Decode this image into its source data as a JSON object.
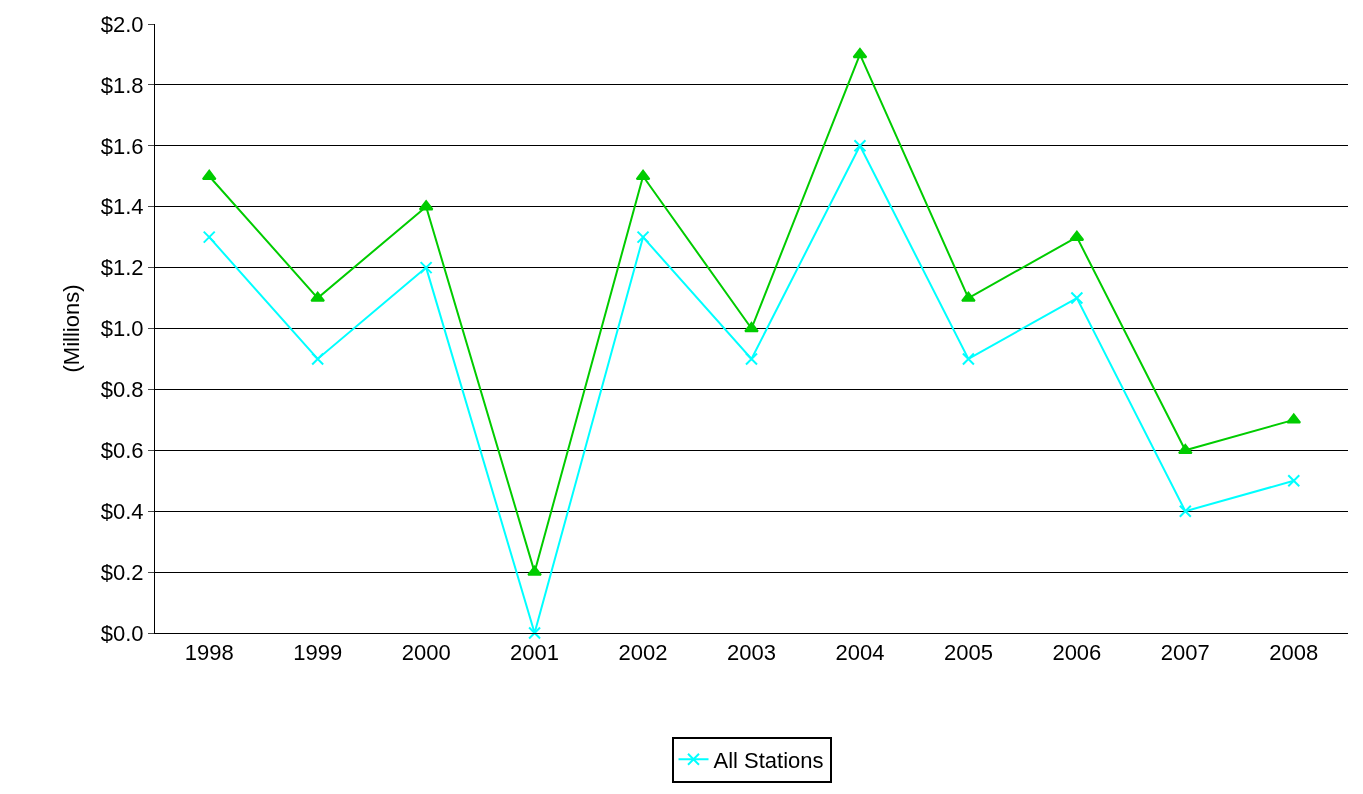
{
  "chart_data": {
    "type": "line",
    "ylabel": "(Millions)",
    "categories": [
      "1998",
      "1999",
      "2000",
      "2001",
      "2002",
      "2003",
      "2004",
      "2005",
      "2006",
      "2007",
      "2008"
    ],
    "series": [
      {
        "name": "All Stations",
        "color": "#00ffff",
        "marker": "cross",
        "values": [
          1.3,
          0.9,
          1.2,
          0.0,
          1.3,
          0.9,
          1.6,
          0.9,
          1.1,
          0.4,
          0.5
        ]
      },
      {
        "color": "#00cc00",
        "marker": "triangle",
        "values": [
          1.5,
          1.1,
          1.4,
          0.2,
          1.5,
          1.0,
          1.9,
          1.1,
          1.3,
          0.6,
          0.7
        ]
      }
    ],
    "ylim": [
      0,
      2
    ],
    "yticks": [
      {
        "value": 0,
        "label": "$0.0"
      },
      {
        "value": 0.2,
        "label": "$0.2"
      },
      {
        "value": 0.4,
        "label": "$0.4"
      },
      {
        "value": 0.6,
        "label": "$0.6"
      },
      {
        "value": 0.8,
        "label": "$0.8"
      },
      {
        "value": 1.0,
        "label": "$1.0"
      },
      {
        "value": 1.2,
        "label": "$1.2"
      },
      {
        "value": 1.4,
        "label": "$1.4"
      },
      {
        "value": 1.6,
        "label": "$1.6"
      },
      {
        "value": 1.8,
        "label": "$1.8"
      },
      {
        "value": 2.0,
        "label": "$2.0"
      }
    ],
    "grid": "y",
    "legend": "bottom"
  }
}
